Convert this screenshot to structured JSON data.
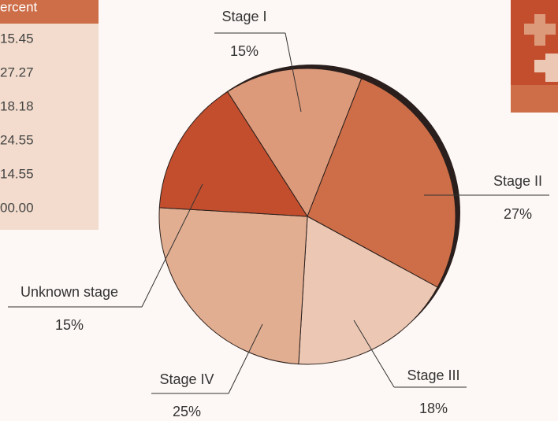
{
  "table": {
    "header": "ercent",
    "rows": [
      "15.45",
      "27.27",
      "18.18",
      "24.55",
      "14.55",
      "00.00"
    ]
  },
  "chart_data": {
    "type": "pie",
    "categories": [
      "Stage I",
      "Stage II",
      "Stage III",
      "Stage IV",
      "Unknown stage"
    ],
    "values": [
      15,
      27,
      18,
      25,
      15
    ],
    "value_labels": [
      "15%",
      "27%",
      "18%",
      "25%",
      "15%"
    ],
    "colors": [
      "#dd9a7a",
      "#cd6e48",
      "#ecc8b4",
      "#e2ae91",
      "#c24e2e"
    ]
  }
}
